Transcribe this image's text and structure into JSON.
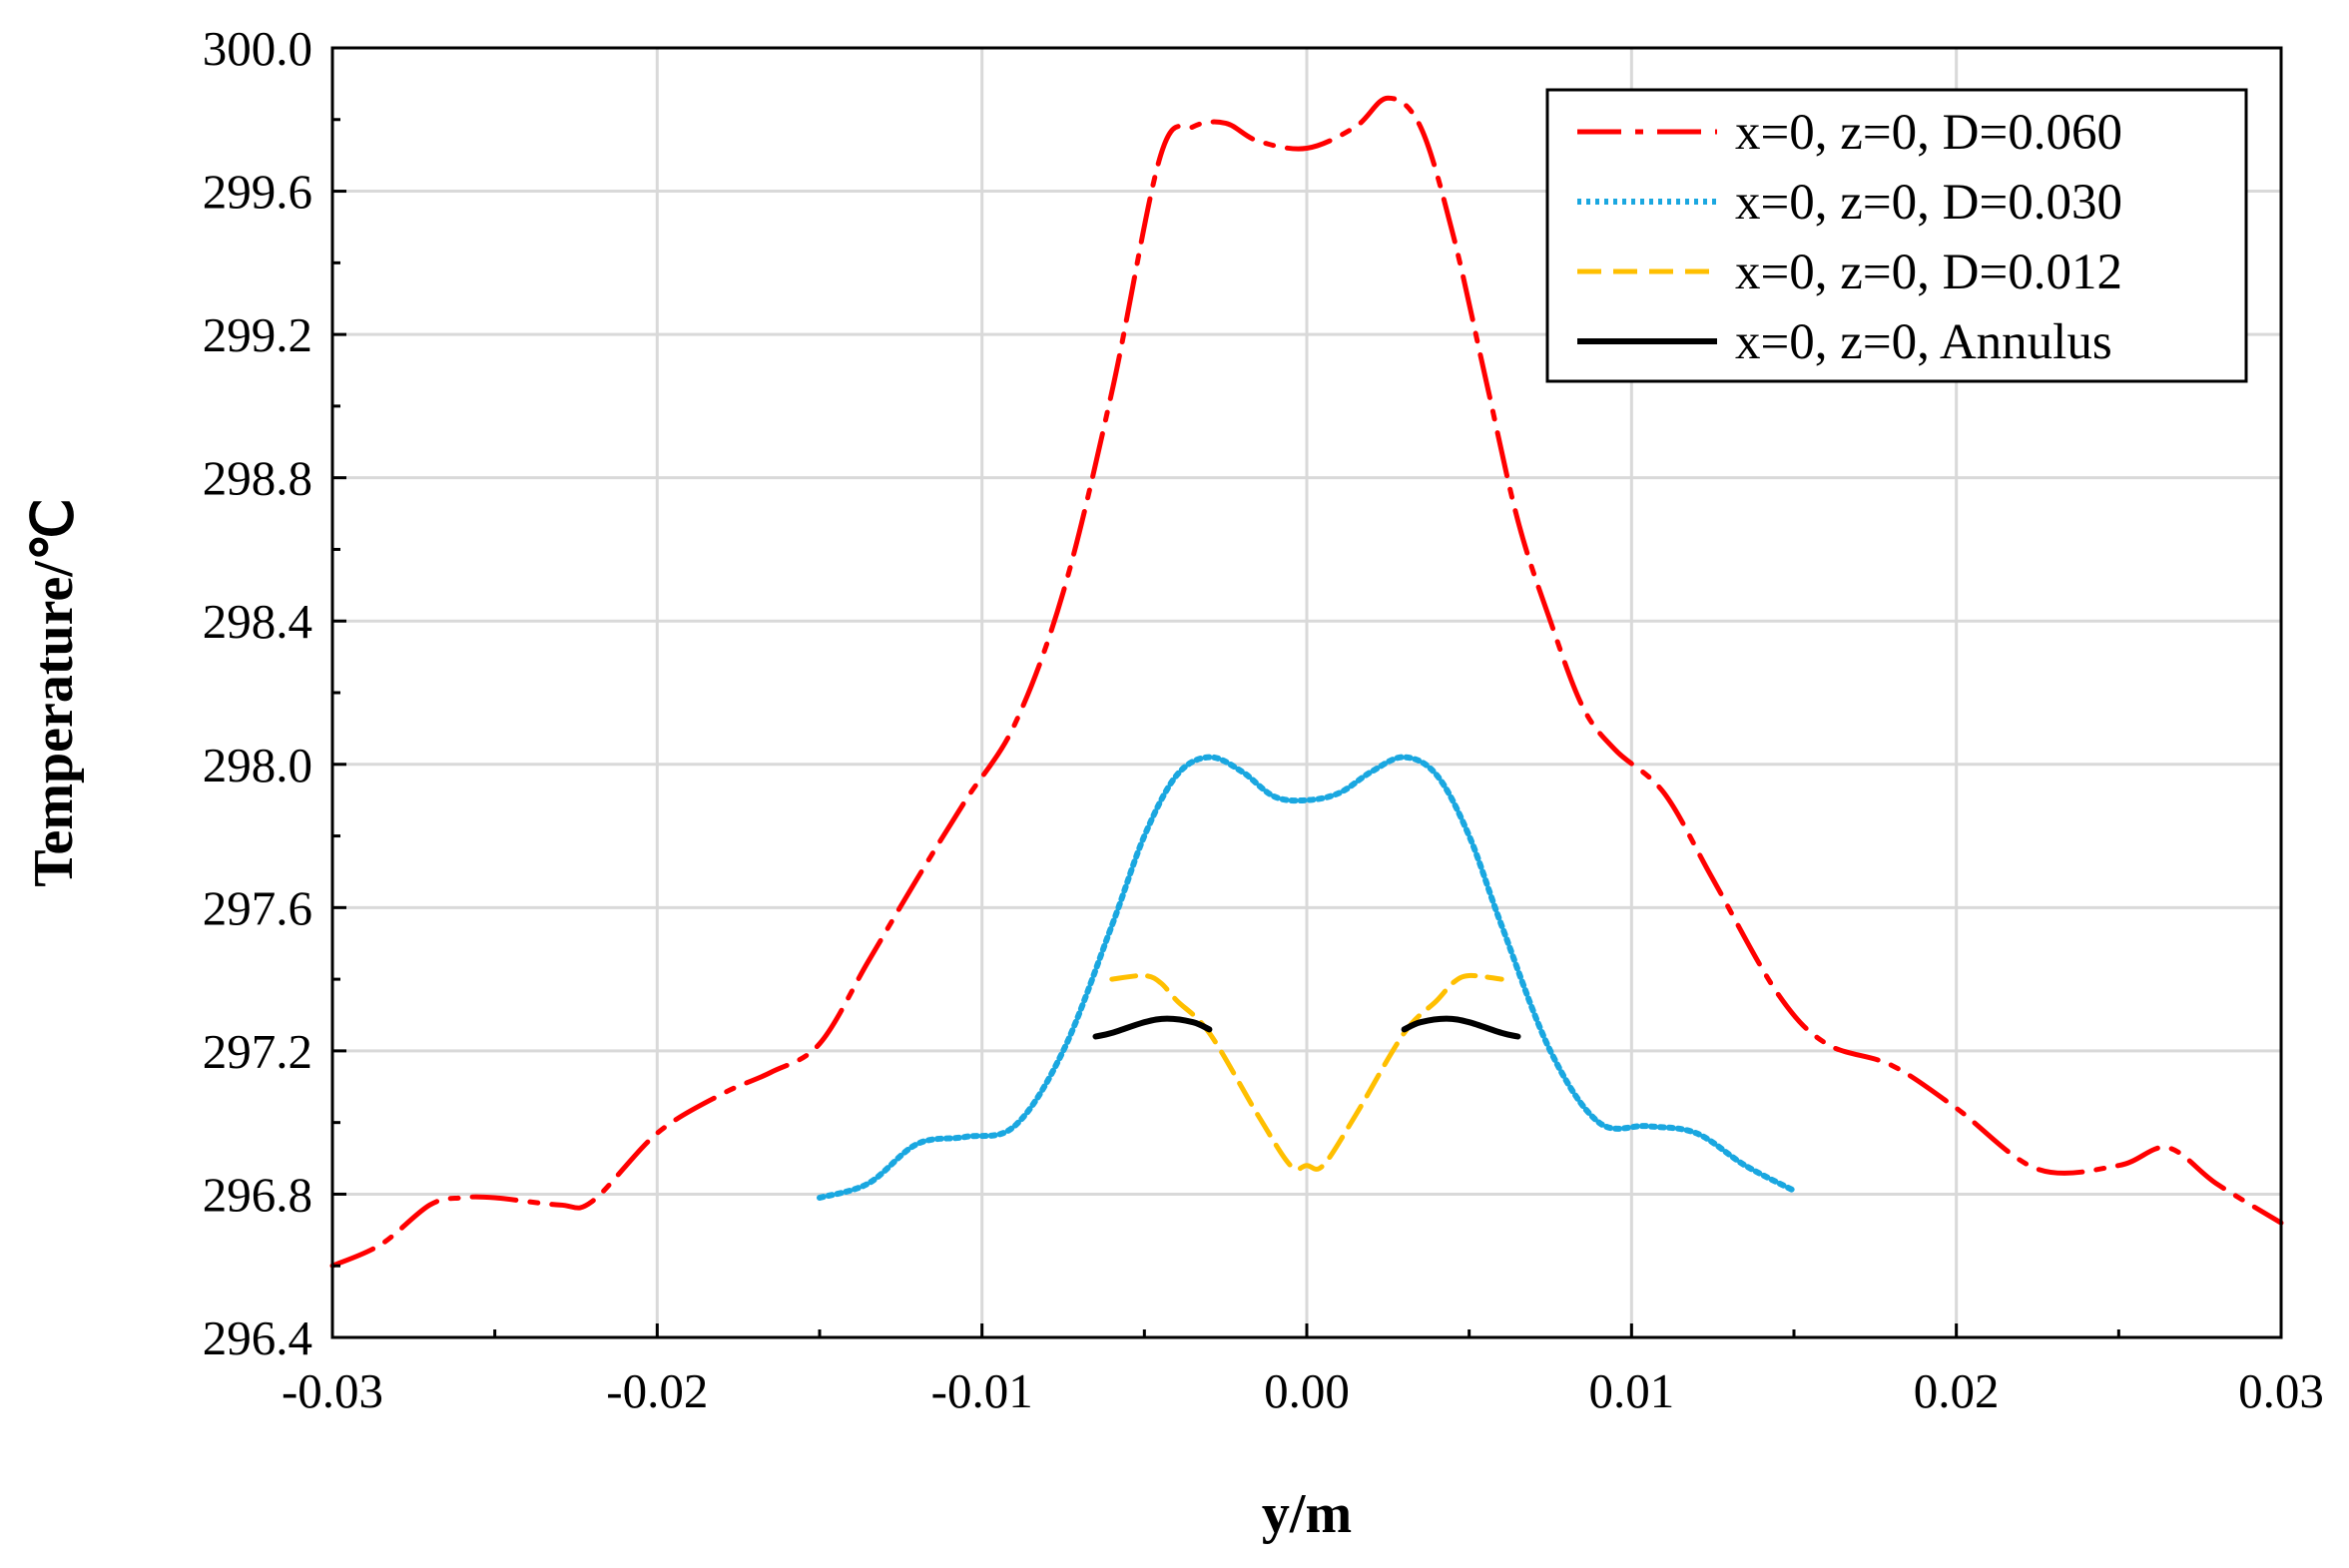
{
  "chart_data": {
    "type": "line",
    "title": "",
    "xlabel": "y/m",
    "ylabel": "Temperature/℃",
    "xlim": [
      -0.03,
      0.03
    ],
    "ylim": [
      296.4,
      300.0
    ],
    "x_ticks": [
      -0.03,
      -0.02,
      -0.01,
      0.0,
      0.01,
      0.02,
      0.03
    ],
    "x_tick_labels": [
      "-0.03",
      "-0.02",
      "-0.01",
      "0.00",
      "0.01",
      "0.02",
      "0.03"
    ],
    "y_ticks": [
      296.4,
      296.8,
      297.2,
      297.6,
      298.0,
      298.4,
      298.8,
      299.2,
      299.6,
      300.0
    ],
    "y_tick_labels": [
      "296.4",
      "296.8",
      "297.2",
      "297.6",
      "298.0",
      "298.4",
      "298.8",
      "299.2",
      "299.6",
      "300.0"
    ],
    "grid": true,
    "legend_position": "top-right",
    "series": [
      {
        "name": "x=0, z=0, D=0.060",
        "color": "#ff0000",
        "style": "dash-dot",
        "x": [
          -0.03,
          -0.0285,
          -0.027,
          -0.026,
          -0.025,
          -0.023,
          -0.022,
          -0.02,
          -0.018,
          -0.0165,
          -0.015,
          -0.0135,
          -0.012,
          -0.0105,
          -0.009,
          -0.0075,
          -0.006,
          -0.0045,
          -0.0035,
          -0.0025,
          -0.0015,
          0.0,
          0.0015,
          0.0025,
          0.0035,
          0.0045,
          0.0055,
          0.0065,
          0.0075,
          0.0085,
          0.0095,
          0.011,
          0.0125,
          0.0145,
          0.016,
          0.018,
          0.02,
          0.0225,
          0.025,
          0.0265,
          0.028,
          0.03
        ],
        "y": [
          296.6,
          296.66,
          296.77,
          296.79,
          296.79,
          296.77,
          296.78,
          296.97,
          297.08,
          297.14,
          297.22,
          297.45,
          297.68,
          297.9,
          298.11,
          298.48,
          299.04,
          299.7,
          299.78,
          299.79,
          299.74,
          299.72,
          299.78,
          299.86,
          299.78,
          299.48,
          299.08,
          298.68,
          298.4,
          298.16,
          298.04,
          297.92,
          297.68,
          297.36,
          297.22,
          297.16,
          297.04,
          296.87,
          296.88,
          296.93,
          296.83,
          296.72
        ]
      },
      {
        "name": "x=0, z=0, D=0.030",
        "color": "#1aa7e0",
        "style": "dotted",
        "x": [
          -0.015,
          -0.0135,
          -0.012,
          -0.0105,
          -0.009,
          -0.0075,
          -0.006,
          -0.005,
          -0.004,
          -0.003,
          -0.002,
          -0.001,
          0.0,
          0.001,
          0.002,
          0.003,
          0.004,
          0.005,
          0.006,
          0.0075,
          0.009,
          0.0105,
          0.012,
          0.0135,
          0.015
        ],
        "y": [
          296.79,
          296.83,
          296.94,
          296.96,
          296.99,
          297.2,
          297.55,
          297.8,
          297.97,
          298.02,
          297.98,
          297.91,
          297.9,
          297.92,
          297.98,
          298.02,
          297.97,
          297.8,
          297.55,
          297.2,
          297.0,
          296.99,
          296.97,
          296.88,
          296.81
        ]
      },
      {
        "name": "x=0, z=0, D=0.012",
        "color": "#ffbf00",
        "style": "dashed",
        "segments": [
          {
            "x": [
              -0.006,
              -0.005,
              -0.0045,
              -0.004,
              -0.003,
              -0.0015,
              -0.0005,
              0.0,
              0.0005,
              0.0015,
              0.003,
              0.004,
              0.0045,
              0.005,
              0.006
            ],
            "y": [
              297.4,
              297.41,
              297.39,
              297.34,
              297.25,
              297.02,
              296.88,
              296.88,
              296.88,
              297.02,
              297.25,
              297.34,
              297.39,
              297.41,
              297.4
            ]
          }
        ]
      },
      {
        "name": "x=0, z=0, Annulus",
        "color": "#000000",
        "style": "solid",
        "segments": [
          {
            "x": [
              -0.0065,
              -0.006,
              -0.005,
              -0.0043,
              -0.0035,
              -0.003
            ],
            "y": [
              297.24,
              297.25,
              297.28,
              297.29,
              297.28,
              297.26
            ]
          },
          {
            "x": [
              0.003,
              0.0035,
              0.0043,
              0.005,
              0.006,
              0.0065
            ],
            "y": [
              297.26,
              297.28,
              297.29,
              297.28,
              297.25,
              297.24
            ]
          }
        ]
      }
    ]
  }
}
